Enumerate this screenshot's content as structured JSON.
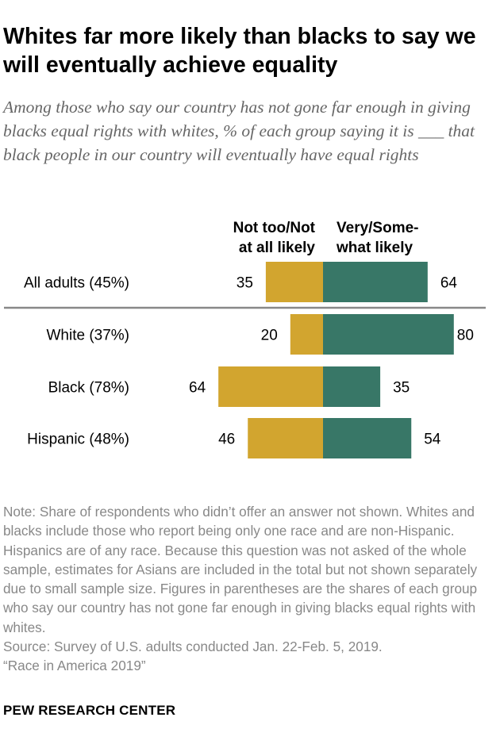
{
  "title": "Whites far more likely than blacks to say we will eventually achieve equality",
  "subtitle": "Among those who say our country has not gone far enough in giving blacks equal rights with whites, % of each group saying it is ___ that black people in our country will eventually have equal rights",
  "note": "Note: Share of respondents who didn’t offer an answer not shown. Whites and blacks include those who report being only one race and are non-Hispanic. Hispanics are of any race. Because this question was not asked of the whole sample, estimates for Asians are included in the total but not shown separately due to small sample size. Figures in parentheses are the shares of each group who say our country has not gone far enough in giving blacks equal rights with whites.",
  "source": "Source: Survey of U.S. adults conducted Jan. 22-Feb. 5, 2019.",
  "report": "“Race in America 2019”",
  "logo": "PEW RESEARCH CENTER",
  "chart_data": {
    "type": "bar",
    "orientation": "horizontal-diverging",
    "categories": [
      "All adults (45%)",
      "White (37%)",
      "Black (78%)",
      "Hispanic (48%)"
    ],
    "series": [
      {
        "name": "Not too/Not at all likely",
        "values": [
          35,
          20,
          64,
          46
        ],
        "color": "#D2A52F",
        "side": "left"
      },
      {
        "name": "Very/Some-what likely",
        "values": [
          64,
          80,
          35,
          54
        ],
        "color": "#387767",
        "side": "right"
      }
    ],
    "legend_labels": [
      "Not too/Not\nat all likely",
      "Very/Some-\nwhat likely"
    ],
    "grid": false
  }
}
